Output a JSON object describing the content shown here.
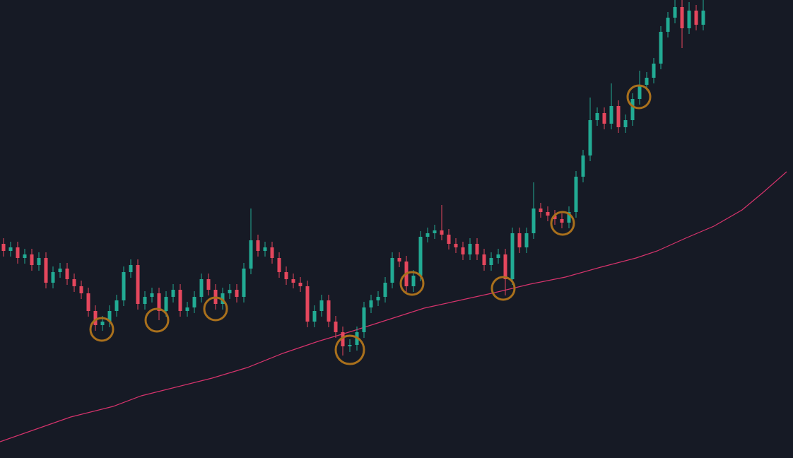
{
  "chart_data": {
    "type": "candlestick",
    "background": "#161a25",
    "up_color": "#22ab94",
    "down_color": "#e5475d",
    "xlim": [
      -0.5,
      111.7
    ],
    "ylim": [
      0,
      648
    ],
    "open": [
      303,
      293,
      298,
      283,
      288,
      273,
      283,
      248,
      263,
      268,
      253,
      243,
      233,
      208,
      188,
      193,
      208,
      223,
      263,
      273,
      218,
      228,
      233,
      208,
      228,
      238,
      208,
      213,
      228,
      253,
      238,
      218,
      233,
      238,
      228,
      268,
      308,
      293,
      298,
      283,
      263,
      253,
      248,
      243,
      193,
      208,
      223,
      193,
      178,
      158,
      160,
      178,
      213,
      223,
      228,
      248,
      283,
      278,
      243,
      258,
      313,
      318,
      322,
      316,
      303,
      298,
      288,
      303,
      288,
      273,
      283,
      288,
      253,
      318,
      298,
      318,
      353,
      348,
      343,
      338,
      333,
      348,
      398,
      428,
      478,
      488,
      473,
      498,
      468,
      478,
      508,
      528,
      538,
      558,
      603,
      623,
      638,
      608,
      633,
      613
    ],
    "high": [
      311,
      306,
      306,
      296,
      296,
      291,
      291,
      271,
      276,
      276,
      261,
      251,
      241,
      216,
      201,
      216,
      231,
      271,
      281,
      281,
      236,
      241,
      241,
      236,
      246,
      246,
      221,
      236,
      261,
      261,
      246,
      241,
      246,
      246,
      276,
      353,
      316,
      306,
      306,
      291,
      271,
      261,
      256,
      251,
      216,
      231,
      231,
      201,
      186,
      168,
      186,
      221,
      231,
      236,
      256,
      291,
      291,
      286,
      266,
      321,
      326,
      330,
      358,
      324,
      311,
      306,
      311,
      311,
      296,
      291,
      296,
      296,
      326,
      326,
      326,
      390,
      361,
      356,
      351,
      346,
      356,
      406,
      436,
      510,
      496,
      496,
      530,
      506,
      486,
      516,
      548,
      546,
      566,
      611,
      631,
      648,
      648,
      645,
      641,
      648
    ],
    "low": [
      285,
      285,
      275,
      275,
      265,
      265,
      240,
      240,
      255,
      245,
      235,
      225,
      200,
      180,
      180,
      185,
      200,
      215,
      255,
      210,
      210,
      220,
      195,
      200,
      220,
      200,
      200,
      205,
      220,
      230,
      210,
      210,
      225,
      220,
      220,
      260,
      285,
      285,
      275,
      255,
      245,
      240,
      235,
      185,
      185,
      200,
      185,
      170,
      145,
      150,
      152,
      170,
      205,
      215,
      220,
      240,
      270,
      235,
      235,
      250,
      305,
      310,
      308,
      295,
      290,
      280,
      280,
      280,
      265,
      265,
      275,
      230,
      245,
      290,
      290,
      310,
      340,
      335,
      330,
      325,
      325,
      340,
      390,
      420,
      470,
      465,
      465,
      460,
      460,
      470,
      500,
      520,
      530,
      550,
      595,
      615,
      580,
      600,
      605,
      605
    ],
    "close": [
      293,
      298,
      283,
      288,
      273,
      283,
      248,
      263,
      268,
      253,
      243,
      233,
      208,
      188,
      193,
      208,
      223,
      263,
      273,
      218,
      228,
      233,
      208,
      228,
      238,
      208,
      213,
      228,
      253,
      238,
      218,
      233,
      238,
      228,
      268,
      308,
      293,
      298,
      283,
      263,
      253,
      248,
      243,
      193,
      208,
      223,
      193,
      178,
      158,
      160,
      178,
      213,
      223,
      228,
      248,
      283,
      278,
      243,
      258,
      313,
      318,
      322,
      316,
      303,
      298,
      288,
      303,
      288,
      273,
      283,
      288,
      253,
      318,
      298,
      318,
      353,
      348,
      343,
      338,
      333,
      348,
      398,
      428,
      478,
      488,
      473,
      498,
      468,
      478,
      508,
      528,
      538,
      558,
      603,
      623,
      638,
      608,
      633,
      613,
      633
    ],
    "moving_average": {
      "color": "#d6336c",
      "x": [
        -0.5,
        9.5,
        15.5,
        19.5,
        29.5,
        34.5,
        39.5,
        44.5,
        49.5,
        54.5,
        59.5,
        64.5,
        69.5,
        74.5,
        79.5,
        84.5,
        89.5,
        92.5,
        96.5,
        100.5,
        104.5,
        107.5,
        110.8
      ],
      "values": [
        23,
        58,
        73,
        88,
        113,
        128,
        148,
        165,
        180,
        196,
        212,
        223,
        234,
        246,
        256,
        270,
        283,
        293,
        311,
        328,
        351,
        376,
        405
      ]
    },
    "markers": {
      "color": "#a9701c",
      "x": [
        13.9,
        21.7,
        30,
        49,
        57.8,
        70.7,
        79.1,
        89.9
      ],
      "y": [
        182,
        195,
        211,
        153,
        247,
        240,
        332,
        511
      ]
    }
  }
}
